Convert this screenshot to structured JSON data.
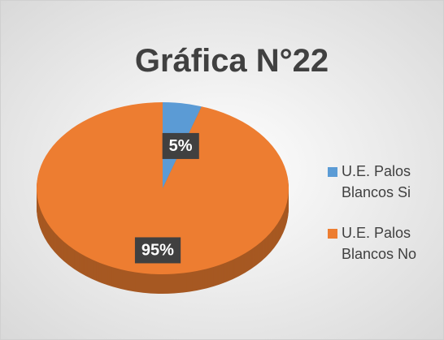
{
  "chart_data": {
    "type": "pie",
    "title": "Gráfica N°22",
    "categories": [
      "U.E. Palos Blancos Si",
      "U.E. Palos Blancos No"
    ],
    "values": [
      5,
      95
    ],
    "value_labels": [
      "5%",
      "95%"
    ],
    "colors": [
      "#5b9bd5",
      "#ed7d31"
    ],
    "legend": "right"
  }
}
